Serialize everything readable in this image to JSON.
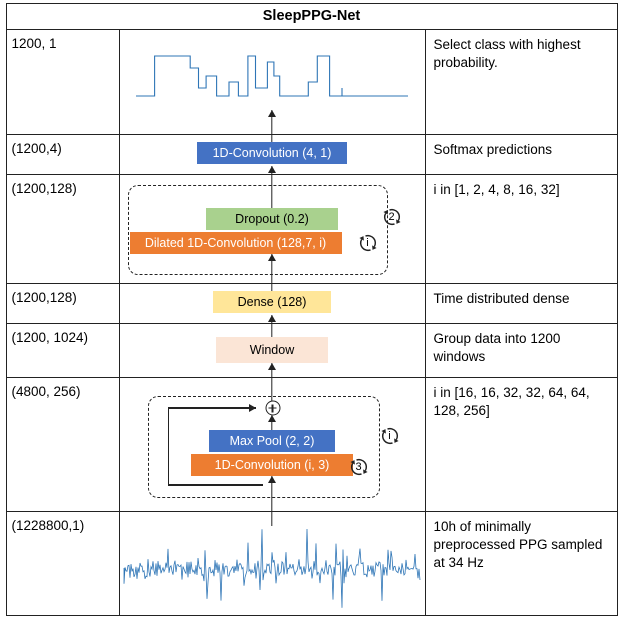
{
  "title": "SleepPPG-Net",
  "colors": {
    "conv_blue": "#4472C4",
    "conv_orange": "#ED7D31",
    "dropout_green": "#A9D18E",
    "dense_yellow": "#FFE699",
    "window_peach": "#FBE5D6",
    "signal_blue": "#2E75B6"
  },
  "rows": [
    {
      "shape": "1200, 1",
      "desc": "Select class with highest probability."
    },
    {
      "shape": "(1200,4)",
      "desc": "Softmax predictions",
      "box": "1D-Convolution (4, 1)"
    },
    {
      "shape": "(1200,128)",
      "desc": "i in [1, 2, 4, 8, 16, 32]",
      "dropout": "Dropout (0.2)",
      "conv": "Dilated 1D-Convolution (128,7, i)",
      "inner_loop": "i",
      "outer_loop": "2"
    },
    {
      "shape": "(1200,128)",
      "desc": "Time distributed dense",
      "box": "Dense (128)"
    },
    {
      "shape": "(1200, 1024)",
      "desc": "Group data into 1200 windows",
      "box": "Window"
    },
    {
      "shape": "(4800, 256)",
      "desc": "i in [16, 16, 32, 32, 64, 64, 128, 256]",
      "maxpool": "Max Pool (2, 2)",
      "conv": "1D-Convolution (i, 3)",
      "inner_loop": "3",
      "outer_loop": "i"
    },
    {
      "shape": "(1228800,1)",
      "desc": "10h of minimally preprocessed PPG sampled at 34 Hz"
    }
  ]
}
